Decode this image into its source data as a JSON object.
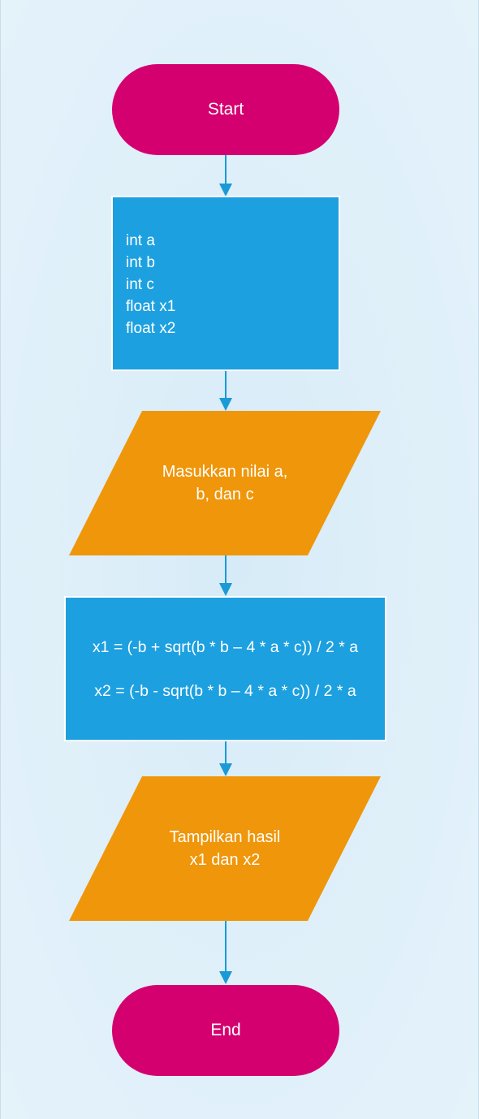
{
  "flowchart": {
    "start_label": "Start",
    "end_label": "End",
    "declarations": [
      "int a",
      "int b",
      "int c",
      "float x1",
      "float x2"
    ],
    "input": {
      "line1": "Masukkan nilai a,",
      "line2": "b, dan c"
    },
    "formulas": {
      "x1": "x1 = (-b + sqrt(b * b – 4 * a * c)) / 2 * a",
      "x2": "x2 = (-b - sqrt(b * b – 4 * a * c)) / 2 * a"
    },
    "output": {
      "line1": "Tampilkan hasil",
      "line2": "x1 dan x2"
    }
  },
  "colors": {
    "terminal": "#d50070",
    "process": "#1ca0e0",
    "io": "#ef960a",
    "connector": "#1a9ad6",
    "background": "#deeff9"
  }
}
